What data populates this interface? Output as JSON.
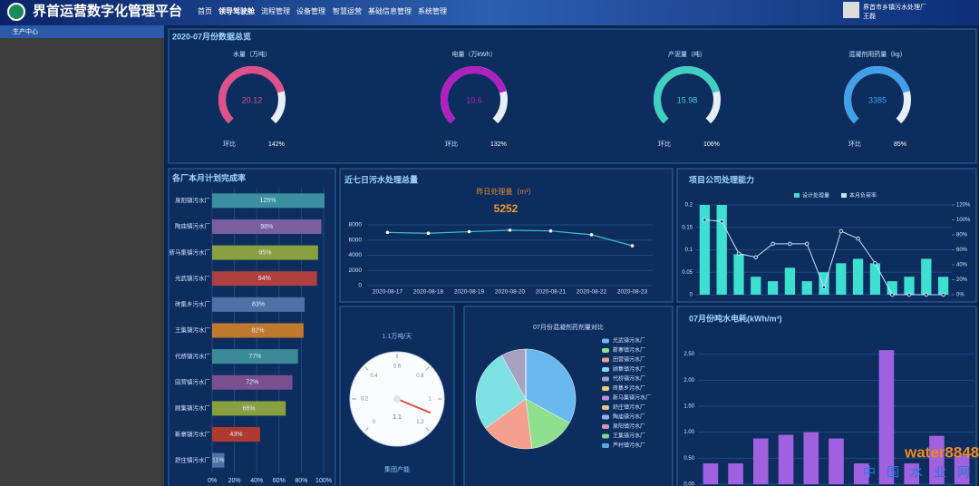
{
  "header": {
    "title": "界首运营数字化管理平台",
    "nav": [
      "首页",
      "领导驾驶舱",
      "流程管理",
      "设备管理",
      "智慧运营",
      "基础信息管理",
      "系统管理"
    ],
    "user": {
      "org": "界首市乡镇污水处理厂",
      "name": "王磊"
    }
  },
  "sidebar": {
    "items": [
      "生产中心"
    ]
  },
  "overview": {
    "title": "2020-07月份数据总览",
    "gauges": [
      {
        "label": "水量（万吨）",
        "value": 20.12,
        "ratio_label": "环比",
        "ratio": "142%",
        "color": "#e0508a"
      },
      {
        "label": "电量（万kWh）",
        "value": 10.6,
        "ratio_label": "环比",
        "ratio": "132%",
        "color": "#b020c0"
      },
      {
        "label": "产泥量（吨）",
        "value": 15.98,
        "ratio_label": "环比",
        "ratio": "106%",
        "color": "#40d0c0"
      },
      {
        "label": "混凝剂用药量（kg）",
        "value": 3385,
        "ratio_label": "环比",
        "ratio": "85%",
        "color": "#40a0e8"
      }
    ]
  },
  "charts": [
    {
      "type": "hbar",
      "title": "各厂本月计划完成率",
      "categories": [
        "泉阳镇污水厂",
        "陶庙镇污水厂",
        "新马集镇污水厂",
        "光武镇污水厂",
        "砖集乡污水厂",
        "王集镇污水厂",
        "代桥镇污水厂",
        "田营镇污水厂",
        "顾集镇污水厂",
        "靳寨镇污水厂",
        "舒庄镇污水厂"
      ],
      "values": [
        125,
        98,
        95,
        94,
        83,
        82,
        77,
        72,
        66,
        43,
        11
      ],
      "value_labels": [
        "125%",
        "98%",
        "95%",
        "94%",
        "83%",
        "82%",
        "77%",
        "72%",
        "66%",
        "43%",
        "11%"
      ],
      "colors": [
        "#3a8fa0",
        "#7a5fa0",
        "#8aa040",
        "#b04040",
        "#5070a8",
        "#c07a30",
        "#3a8a98",
        "#7a5090",
        "#8aa040",
        "#b03a30",
        "#5070a8"
      ],
      "xlim": [
        0,
        100
      ],
      "xticks": [
        {
          "value": 0,
          "label": "0%"
        },
        {
          "value": 20,
          "label": "20%"
        },
        {
          "value": 40,
          "label": "40%"
        },
        {
          "value": 60,
          "label": "60%"
        },
        {
          "value": 80,
          "label": "80%"
        },
        {
          "value": 100,
          "label": "100%"
        }
      ]
    },
    {
      "type": "line",
      "title": "近七日污水处理总量",
      "subtitle": "昨日处理量（m³）",
      "highlight": 5252,
      "x": [
        "2020-08-17",
        "2020-08-18",
        "2020-08-19",
        "2020-08-20",
        "2020-08-21",
        "2020-08-22",
        "2020-08-23"
      ],
      "values": [
        7000,
        6900,
        7100,
        7300,
        7200,
        6700,
        5252
      ],
      "color": "#3ac0d0",
      "ylim": [
        0,
        8000
      ],
      "yticks": [
        0,
        2000,
        4000,
        6000,
        8000
      ],
      "grid": true
    },
    {
      "type": "combo",
      "title": "项目公司处理能力",
      "categories": [
        null,
        null,
        null,
        null,
        null,
        null,
        null,
        null,
        null,
        null,
        null,
        null,
        null,
        null,
        null
      ],
      "series": [
        {
          "name": "设计处理量",
          "type": "bar",
          "color": "#3de0d0",
          "values": [
            0.2,
            0.2,
            0.09,
            0.04,
            0.03,
            0.06,
            0.03,
            0.05,
            0.07,
            0.08,
            0.07,
            0.03,
            0.04,
            0.08,
            0.04
          ]
        },
        {
          "name": "本月负荷率",
          "type": "line",
          "axis": "y2",
          "color": "#c8e4ff",
          "values": [
            100,
            98,
            55,
            50,
            68,
            68,
            68,
            10,
            85,
            75,
            42,
            0,
            0,
            0,
            0
          ]
        }
      ],
      "ylim": [
        0,
        0.2
      ],
      "yticks": [
        0,
        0.05,
        0.1,
        0.15,
        0.2
      ],
      "y2lim": [
        0,
        120
      ],
      "y2ticks": [
        {
          "value": 0,
          "label": "0%"
        },
        {
          "value": 20,
          "label": "20%"
        },
        {
          "value": 40,
          "label": "40%"
        },
        {
          "value": 60,
          "label": "60%"
        },
        {
          "value": 80,
          "label": "80%"
        },
        {
          "value": 100,
          "label": "100%"
        },
        {
          "value": 120,
          "label": "120%"
        }
      ]
    },
    {
      "type": "gauge",
      "title": "1.1万吨/天",
      "value": 1.1,
      "lim": [
        0,
        1.2
      ],
      "ticks": [
        0,
        0.2,
        0.4,
        0.6,
        0.8,
        1,
        1.2
      ],
      "footer": "集团产能",
      "color": "#e05040"
    },
    {
      "type": "pie",
      "title": "07月份混凝剂药剂量对比",
      "categories": [
        "光武镇污水厂",
        "靳寨镇污水厂",
        "田营镇污水厂",
        "顾集镇污水厂",
        "代桥镇污水厂",
        "砖集乡污水厂",
        "新马集镇污水厂",
        "舒庄镇污水厂",
        "陶庙镇污水厂",
        "泉阳镇污水厂",
        "王集镇污水厂",
        "芦村镇污水厂"
      ],
      "values": [
        33,
        15,
        17,
        27,
        8,
        0,
        0,
        0,
        0,
        0,
        0,
        0
      ],
      "colors": [
        "#6ab8f0",
        "#8ee08e",
        "#f5a08f",
        "#7ee0e0",
        "#a8a0c0",
        "#f0d070",
        "#c090e0",
        "#f0c080",
        "#90b0f0",
        "#e090b0",
        "#80d0a0",
        "#60a8e0"
      ]
    },
    {
      "type": "bar",
      "title": "07月份吨水电耗(kWh/m³)",
      "categories": [
        null,
        null,
        null,
        null,
        null,
        null,
        null,
        null,
        null,
        null,
        null
      ],
      "values": [
        0.4,
        0.4,
        0.88,
        0.95,
        1.0,
        0.88,
        0.4,
        2.58,
        0.4,
        0.93,
        0.55
      ],
      "color": "#a060e0",
      "ylim": [
        0,
        3
      ],
      "yticks": [
        {
          "value": 0,
          "label": "0.00"
        },
        {
          "value": 0.5,
          "label": "0.50"
        },
        {
          "value": 1,
          "label": "1.00"
        },
        {
          "value": 1.5,
          "label": "1.50"
        },
        {
          "value": 2,
          "label": "2.00"
        },
        {
          "value": 2.5,
          "label": "2.50"
        }
      ],
      "grid": true
    }
  ],
  "watermark": {
    "brand": "water8848",
    "site": "中国水业网"
  }
}
